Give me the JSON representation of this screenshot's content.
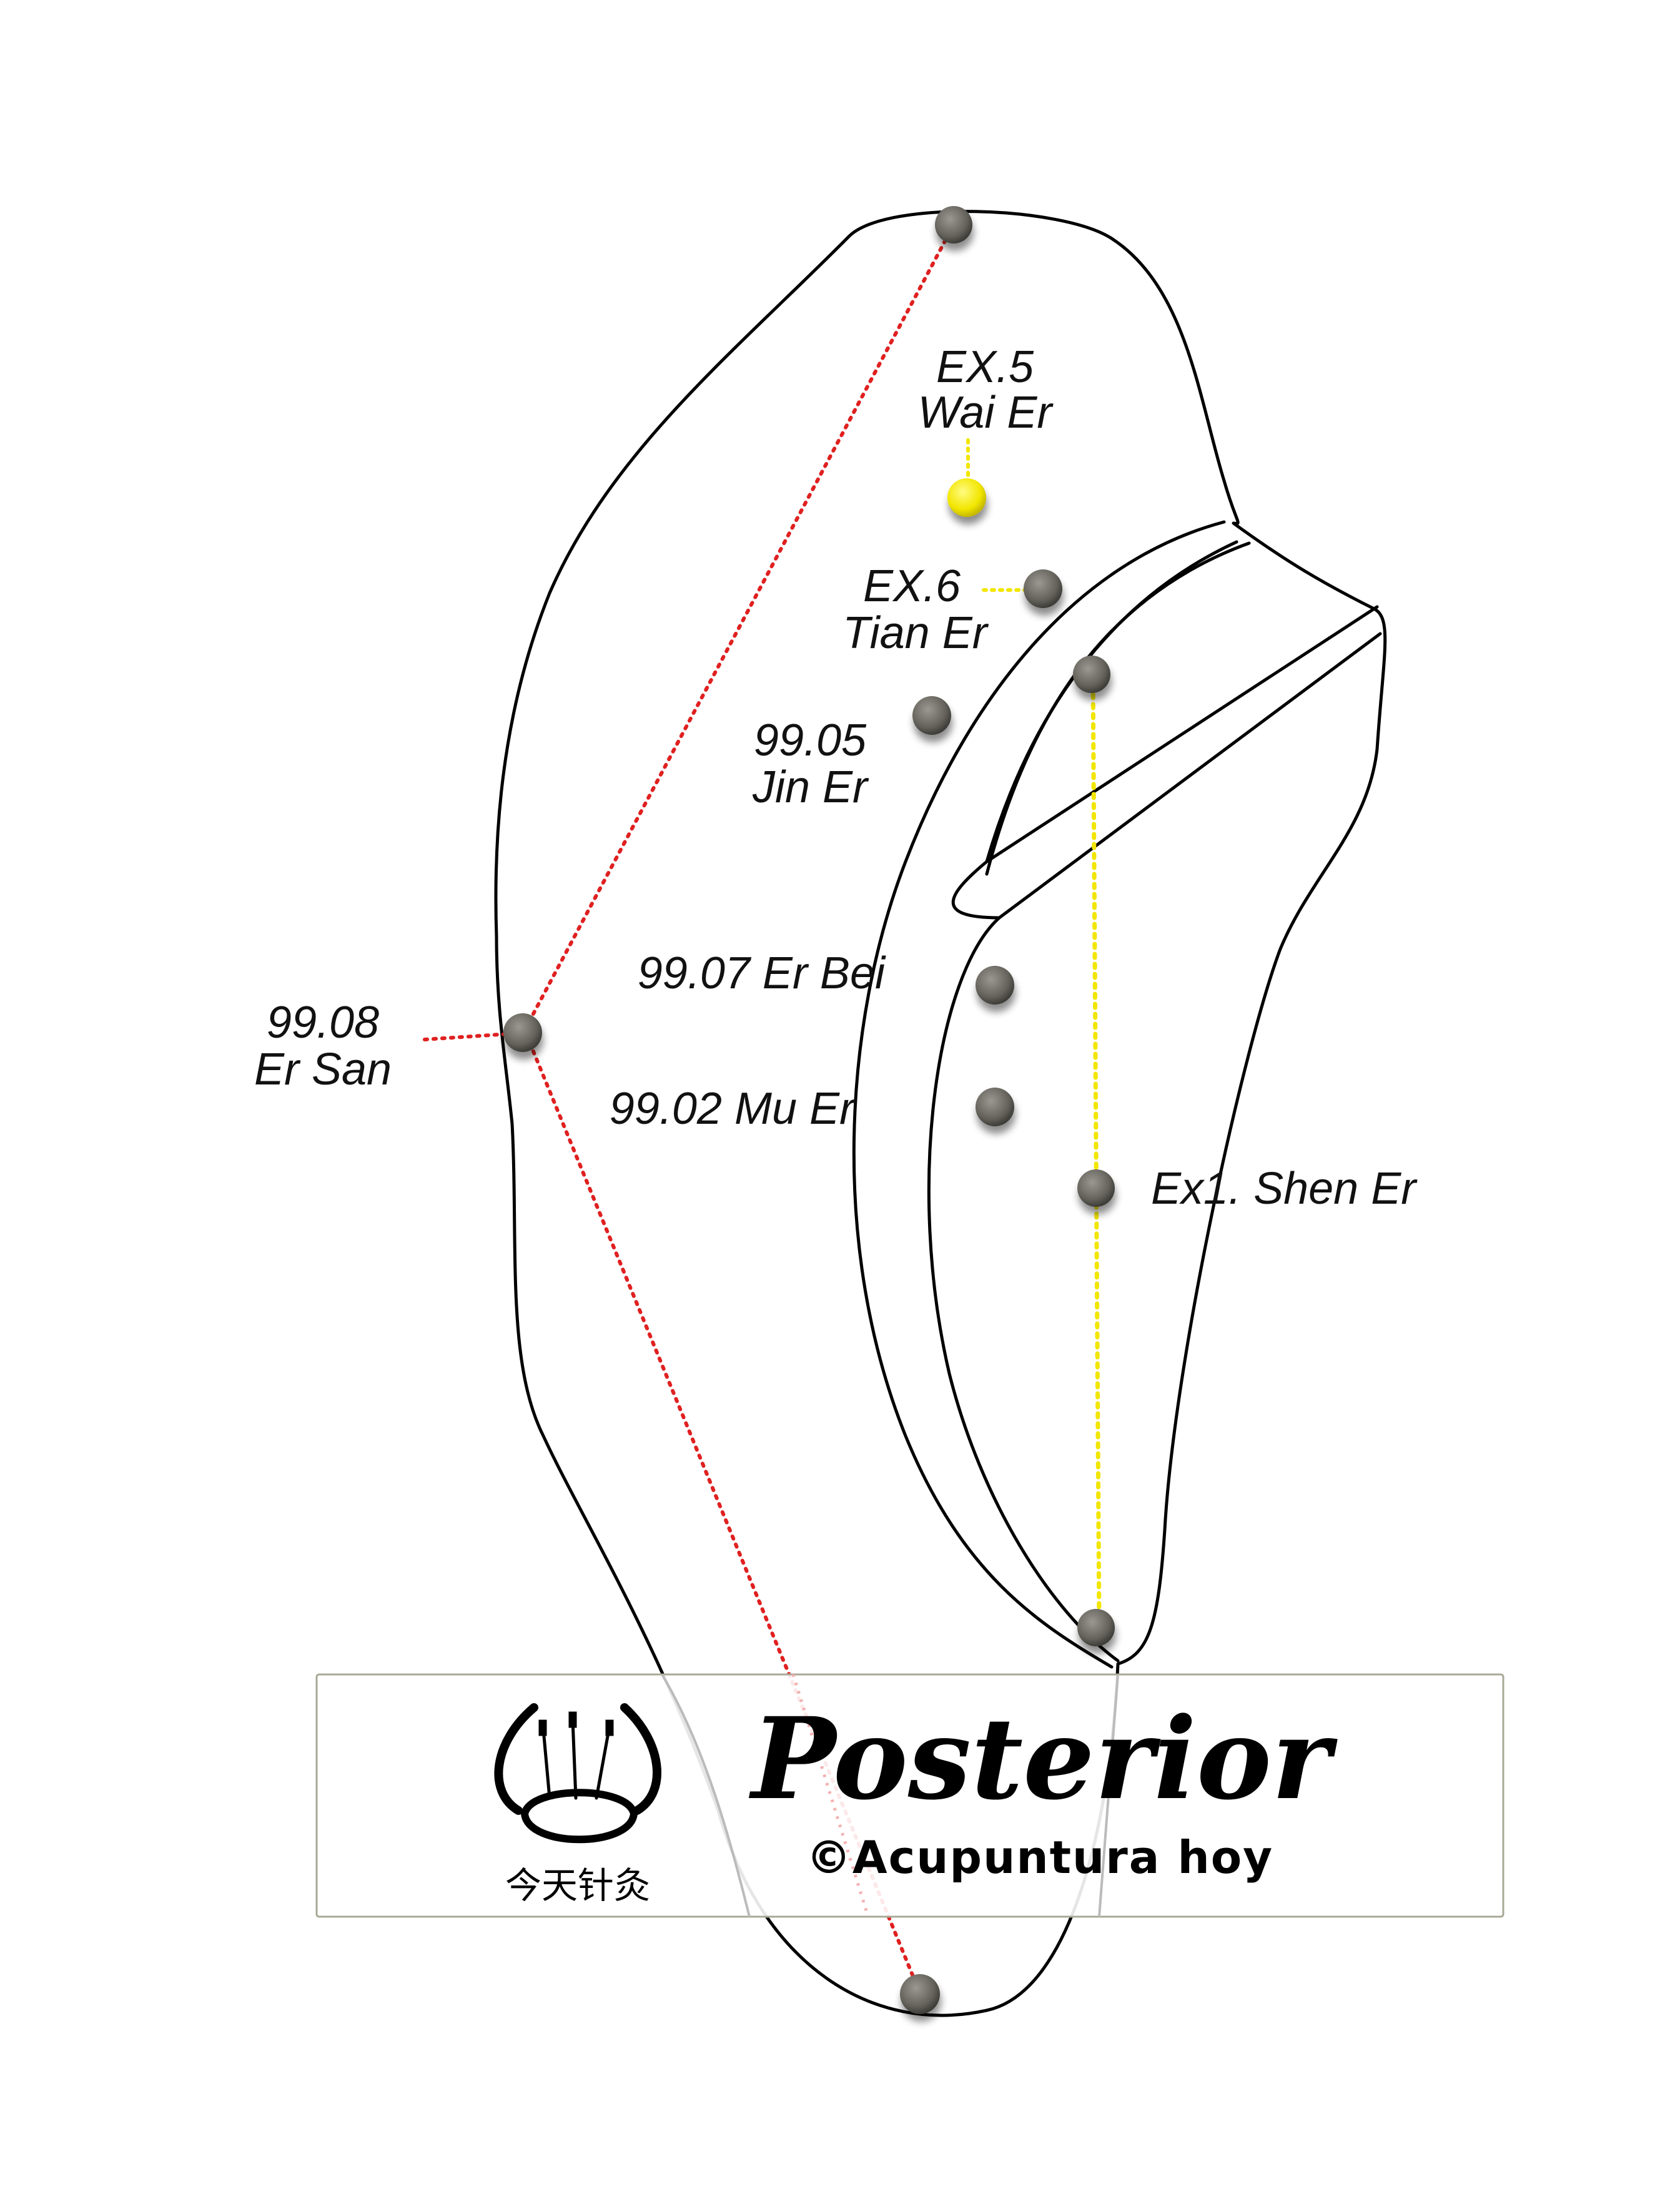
{
  "colors": {
    "red_line": "#e02020",
    "yellow_line": "#f2e600",
    "point_gray": "#6b6a64",
    "point_yellow": "#f5ea00",
    "outline": "#000000"
  },
  "points": {
    "wai_er": {
      "code": "EX.5",
      "name": "Wai Er"
    },
    "tian_er": {
      "code": "EX.6",
      "name": "Tian Er"
    },
    "jin_er": {
      "code": "99.05",
      "name": "Jin Er"
    },
    "er_bei": {
      "label": "99.07 Er Bei"
    },
    "mu_er": {
      "label": "99.02 Mu Er"
    },
    "er_san": {
      "code": "99.08",
      "name": "Er San"
    },
    "shen_er": {
      "label": "Ex1. Shen Er"
    }
  },
  "banner": {
    "title": "Posterior",
    "copyright": "©Acupuntura hoy",
    "logo_caption": "今天针灸"
  }
}
